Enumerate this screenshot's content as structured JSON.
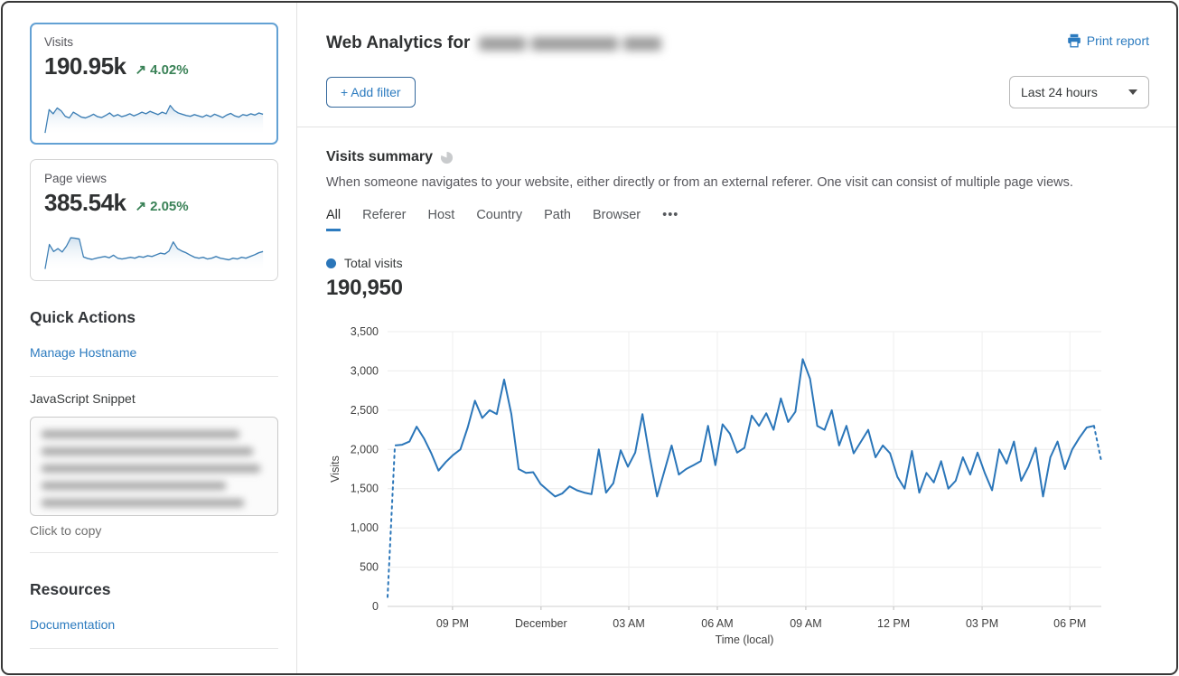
{
  "app": {
    "accent_blue": "#2c7bbf",
    "chart_blue": "#2b76b9",
    "positive_green": "#3a8257"
  },
  "sidebar": {
    "visits_card": {
      "label": "Visits",
      "value": "190.95k",
      "delta_arrow": "↗",
      "delta": "4.02%"
    },
    "pageviews_card": {
      "label": "Page views",
      "value": "385.54k",
      "delta_arrow": "↗",
      "delta": "2.05%"
    },
    "quick_actions_title": "Quick Actions",
    "manage_hostname_link": "Manage Hostname",
    "js_snippet_label": "JavaScript Snippet",
    "click_to_copy": "Click to copy",
    "resources_title": "Resources",
    "documentation_link": "Documentation"
  },
  "header": {
    "title": "Web Analytics for",
    "print_report": "Print report",
    "add_filter": "+ Add filter",
    "time_range": "Last 24 hours"
  },
  "visits_summary": {
    "title": "Visits summary",
    "description": "When someone navigates to your website, either directly or from an external referer. One visit can consist of multiple page views.",
    "tabs": [
      "All",
      "Referer",
      "Host",
      "Country",
      "Path",
      "Browser"
    ],
    "more_tabs": "•••",
    "active_tab": "All",
    "legend_label": "Total visits",
    "total_value": "190,950"
  },
  "chart_data": [
    {
      "type": "line",
      "title": "Total visits",
      "ylabel": "Visits",
      "xlabel": "Time (local)",
      "ylim": [
        0,
        3500
      ],
      "ytick_step": 500,
      "yticks": [
        "0",
        "500",
        "1,000",
        "1,500",
        "2,000",
        "2,500",
        "3,000",
        "3,500"
      ],
      "xticks": [
        {
          "label": "09 PM",
          "f": 0.091
        },
        {
          "label": "December",
          "f": 0.215
        },
        {
          "label": "03 AM",
          "f": 0.338
        },
        {
          "label": "06 AM",
          "f": 0.462
        },
        {
          "label": "09 AM",
          "f": 0.586
        },
        {
          "label": "12 PM",
          "f": 0.709
        },
        {
          "label": "03 PM",
          "f": 0.833
        },
        {
          "label": "06 PM",
          "f": 0.956
        }
      ],
      "grid": true,
      "legend_position": "top-left",
      "series": [
        {
          "name": "Total visits",
          "color": "#2b76b9",
          "dashed_start_points": 2,
          "dashed_end_points": 2,
          "values": [
            120,
            2050,
            2060,
            2100,
            2290,
            2140,
            1950,
            1730,
            1840,
            1930,
            2000,
            2280,
            2620,
            2400,
            2500,
            2450,
            2890,
            2450,
            1750,
            1700,
            1710,
            1560,
            1480,
            1400,
            1440,
            1530,
            1480,
            1450,
            1430,
            2000,
            1450,
            1570,
            1990,
            1780,
            1960,
            2450,
            1900,
            1400,
            1720,
            2050,
            1680,
            1750,
            1800,
            1850,
            2300,
            1800,
            2320,
            2200,
            1960,
            2020,
            2430,
            2300,
            2460,
            2250,
            2650,
            2350,
            2480,
            3150,
            2900,
            2300,
            2250,
            2500,
            2050,
            2300,
            1950,
            2100,
            2250,
            1900,
            2050,
            1950,
            1650,
            1500,
            1980,
            1450,
            1700,
            1580,
            1850,
            1500,
            1600,
            1900,
            1680,
            1960,
            1700,
            1480,
            2000,
            1820,
            2100,
            1600,
            1780,
            2020,
            1400,
            1900,
            2100,
            1750,
            2000,
            2150,
            2280,
            2300,
            1850
          ]
        }
      ]
    },
    {
      "type": "line",
      "title": "Visits sparkline (last 24 hours, relative scale 0-100)",
      "values": [
        2,
        58,
        48,
        62,
        55,
        42,
        38,
        52,
        46,
        40,
        38,
        42,
        47,
        41,
        39,
        44,
        50,
        42,
        46,
        41,
        44,
        48,
        43,
        47,
        52,
        48,
        54,
        50,
        46,
        52,
        48,
        68,
        56,
        50,
        47,
        44,
        42,
        46,
        43,
        40,
        45,
        41,
        47,
        43,
        39,
        45,
        49,
        43,
        40,
        46,
        44,
        48,
        45,
        50,
        47
      ]
    },
    {
      "type": "line",
      "title": "Page views sparkline (last 24 hours, relative scale 0-100)",
      "values": [
        3,
        62,
        45,
        52,
        44,
        58,
        78,
        77,
        75,
        32,
        28,
        26,
        29,
        31,
        33,
        30,
        36,
        29,
        27,
        29,
        31,
        29,
        33,
        31,
        35,
        33,
        37,
        41,
        39,
        46,
        68,
        52,
        46,
        42,
        36,
        31,
        29,
        31,
        27,
        29,
        33,
        29,
        27,
        25,
        29,
        27,
        31,
        29,
        33,
        37,
        42,
        45
      ]
    }
  ]
}
